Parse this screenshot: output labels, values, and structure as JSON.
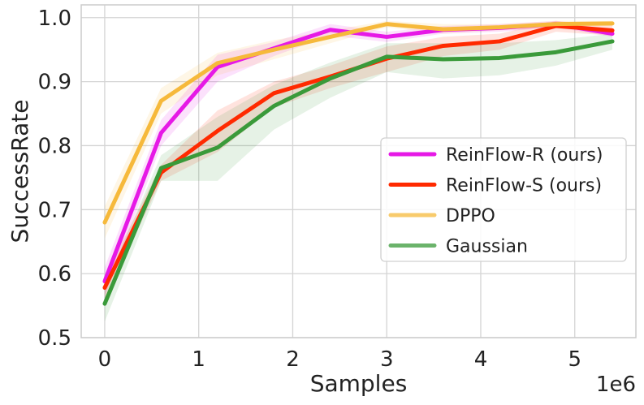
{
  "chart_data": {
    "type": "line",
    "xlabel": "Samples",
    "ylabel": "SuccessRate",
    "x_offset_text": "1e6",
    "xlim": [
      -0.25,
      5.65
    ],
    "ylim": [
      0.5,
      1.02
    ],
    "x_ticks": [
      0,
      1,
      2,
      3,
      4,
      5
    ],
    "y_ticks": [
      0.5,
      0.6,
      0.7,
      0.8,
      0.9,
      1.0
    ],
    "x_tick_labels": [
      "0",
      "1",
      "2",
      "3",
      "4",
      "5"
    ],
    "y_tick_labels": [
      "0.5",
      "0.6",
      "0.7",
      "0.8",
      "0.9",
      "1.0"
    ],
    "grid": true,
    "legend_position": "center-right",
    "series": [
      {
        "name": "ReinFlow-R (ours)",
        "color": "#e619e6",
        "x": [
          0,
          0.6,
          1.2,
          1.8,
          2.4,
          3.0,
          3.6,
          4.2,
          4.8,
          5.4
        ],
        "y": [
          0.588,
          0.82,
          0.923,
          0.952,
          0.981,
          0.97,
          0.981,
          0.984,
          0.99,
          0.975
        ],
        "lower": [
          0.565,
          0.8,
          0.9,
          0.94,
          0.972,
          0.962,
          0.975,
          0.978,
          0.985,
          0.97
        ],
        "upper": [
          0.61,
          0.84,
          0.942,
          0.962,
          0.99,
          0.978,
          0.987,
          0.99,
          0.995,
          0.98
        ]
      },
      {
        "name": "ReinFlow-S (ours)",
        "color": "#ff2a00",
        "x": [
          0,
          0.6,
          1.2,
          1.8,
          2.4,
          3.0,
          3.6,
          4.2,
          4.8,
          5.4
        ],
        "y": [
          0.578,
          0.758,
          0.823,
          0.882,
          0.908,
          0.936,
          0.956,
          0.963,
          0.987,
          0.98
        ],
        "lower": [
          0.56,
          0.745,
          0.79,
          0.86,
          0.89,
          0.915,
          0.94,
          0.95,
          0.978,
          0.972
        ],
        "upper": [
          0.595,
          0.77,
          0.855,
          0.9,
          0.925,
          0.955,
          0.97,
          0.975,
          0.995,
          0.988
        ]
      },
      {
        "name": "DPPO",
        "color": "#f6b93b",
        "x": [
          0,
          0.6,
          1.2,
          1.8,
          2.4,
          3.0,
          3.6,
          4.2,
          4.8,
          5.4
        ],
        "y": [
          0.68,
          0.87,
          0.929,
          0.95,
          0.97,
          0.99,
          0.982,
          0.985,
          0.99,
          0.991
        ],
        "lower": [
          0.655,
          0.85,
          0.91,
          0.935,
          0.96,
          0.985,
          0.975,
          0.98,
          0.985,
          0.987
        ],
        "upper": [
          0.705,
          0.89,
          0.945,
          0.965,
          0.98,
          0.995,
          0.99,
          0.99,
          0.995,
          0.995
        ]
      },
      {
        "name": "Gaussian",
        "color": "#3a9a3a",
        "x": [
          0,
          0.6,
          1.2,
          1.8,
          2.4,
          3.0,
          3.6,
          4.2,
          4.8,
          5.4
        ],
        "y": [
          0.553,
          0.765,
          0.797,
          0.862,
          0.905,
          0.939,
          0.935,
          0.937,
          0.946,
          0.963
        ],
        "lower": [
          0.525,
          0.745,
          0.745,
          0.825,
          0.875,
          0.915,
          0.905,
          0.91,
          0.925,
          0.95
        ],
        "upper": [
          0.58,
          0.785,
          0.845,
          0.895,
          0.93,
          0.96,
          0.96,
          0.96,
          0.965,
          0.975
        ]
      }
    ]
  }
}
